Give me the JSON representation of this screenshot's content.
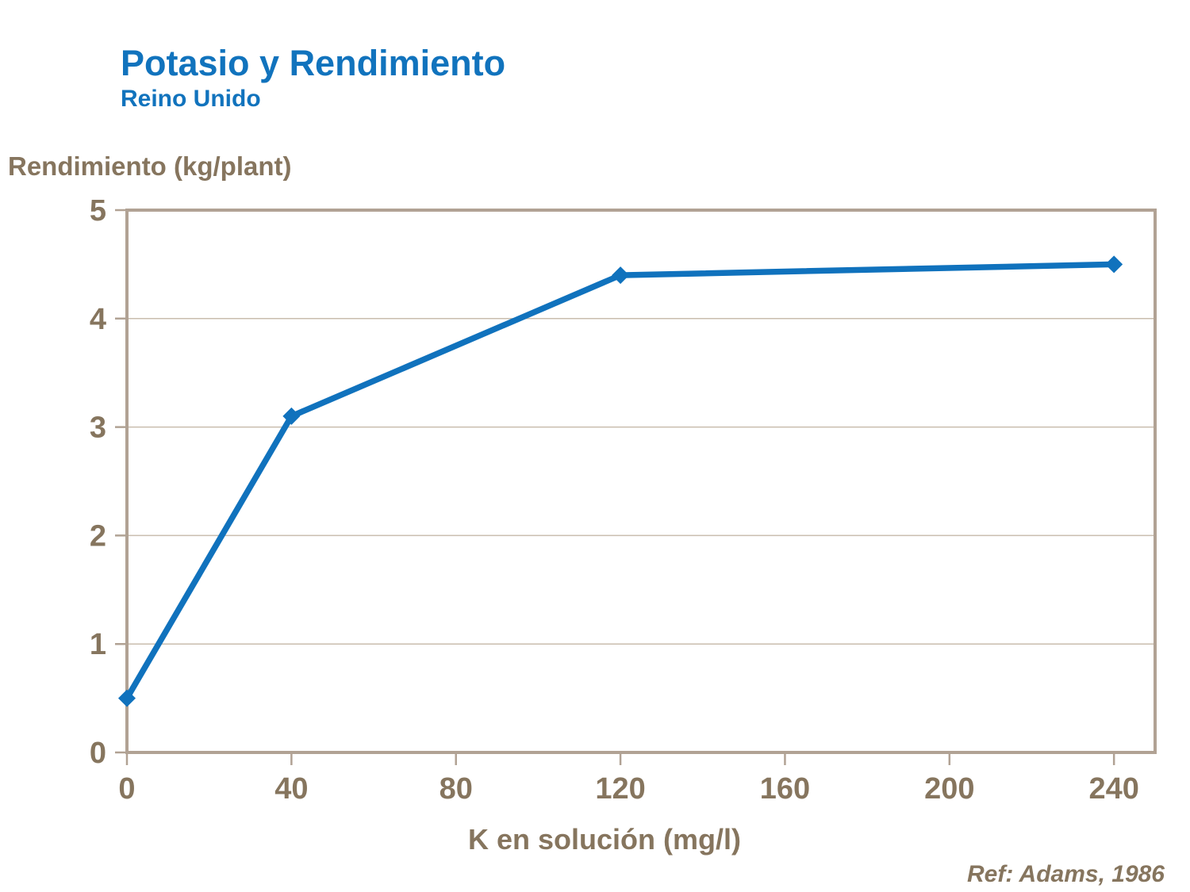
{
  "header": {
    "title": "Potasio y Rendimiento",
    "subtitle": "Reino Unido"
  },
  "footer": {
    "reference": "Ref: Adams, 1986"
  },
  "chart_data": {
    "type": "line",
    "title": "Potasio y Rendimiento",
    "subtitle": "Reino Unido",
    "xlabel": "K en solución (mg/l)",
    "ylabel": "Rendimiento (kg/plant)",
    "x": [
      0,
      40,
      120,
      240
    ],
    "series": [
      {
        "name": "Rendimiento",
        "values": [
          0.5,
          3.1,
          4.4,
          4.5
        ]
      }
    ],
    "xlim": [
      0,
      250
    ],
    "ylim": [
      0,
      5
    ],
    "xticks": [
      0,
      40,
      80,
      120,
      160,
      200,
      240
    ],
    "yticks": [
      0,
      1,
      2,
      3,
      4,
      5
    ],
    "grid": "horizontal-only",
    "legend": "none",
    "marker": "diamond",
    "reference": "Ref: Adams, 1986",
    "colors": {
      "line": "#1072bd",
      "title": "#1173bd",
      "axis": "#b1a294",
      "grid": "#c9bdae",
      "tick_text": "#86755e",
      "background": "#ffffff"
    }
  }
}
